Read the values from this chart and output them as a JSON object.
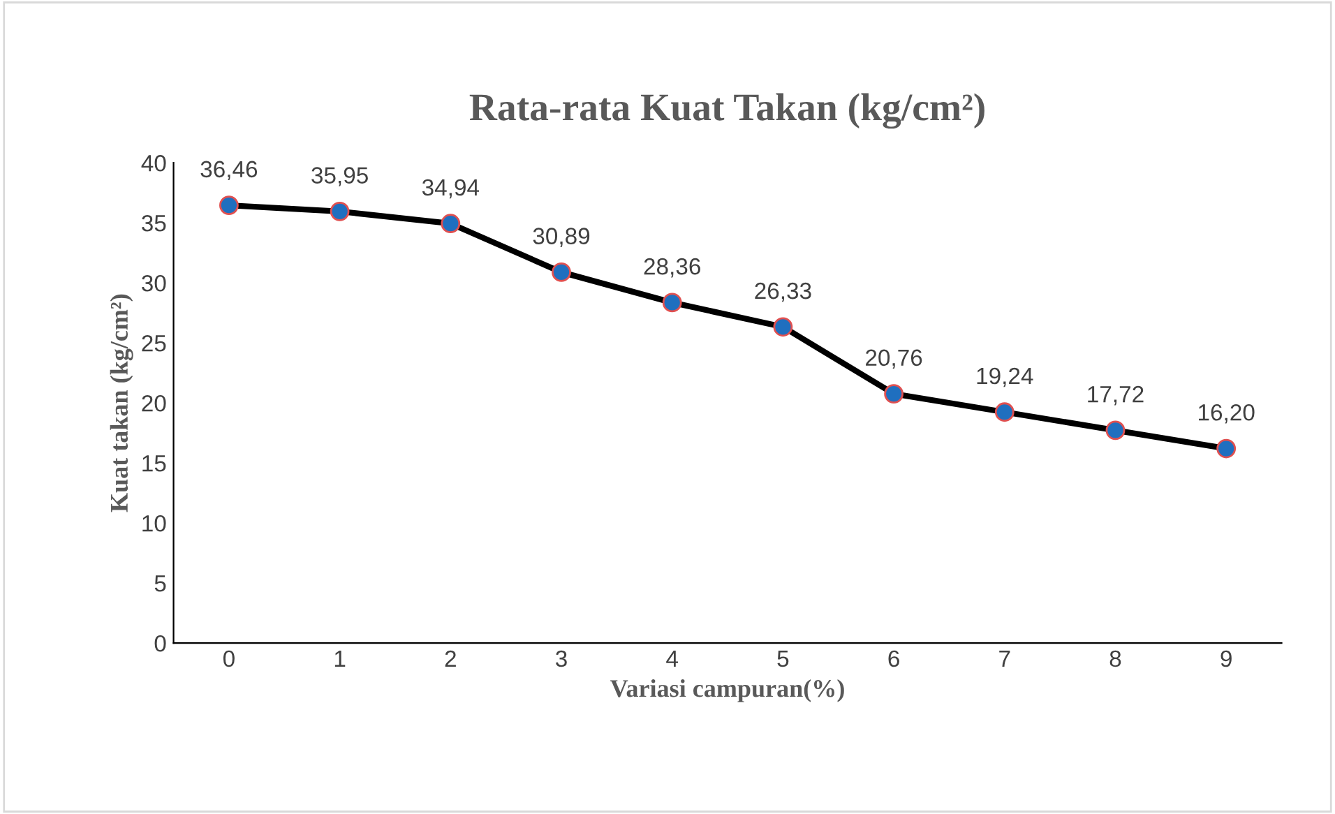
{
  "chart_data": {
    "type": "line",
    "title": "Rata-rata Kuat Takan (kg/cm²)",
    "xlabel": "Variasi campuran(%)",
    "ylabel": "Kuat takan (kg/cm²)",
    "categories": [
      "0",
      "1",
      "2",
      "3",
      "4",
      "5",
      "6",
      "7",
      "8",
      "9"
    ],
    "series": [
      {
        "color": "#000000",
        "values": [
          36.46,
          35.95,
          34.94,
          30.89,
          28.36,
          26.33,
          20.76,
          19.24,
          17.72,
          16.2
        ],
        "value_labels": [
          "36,46",
          "35,95",
          "34,94",
          "30,89",
          "28,36",
          "26,33",
          "20,76",
          "19,24",
          "17,72",
          "16,20"
        ]
      }
    ],
    "ylim": [
      0,
      40
    ],
    "yticks": [
      0,
      5,
      10,
      15,
      20,
      25,
      30,
      35,
      40
    ],
    "grid": false,
    "legend": false,
    "marker": "circle",
    "line_style": "solid"
  }
}
